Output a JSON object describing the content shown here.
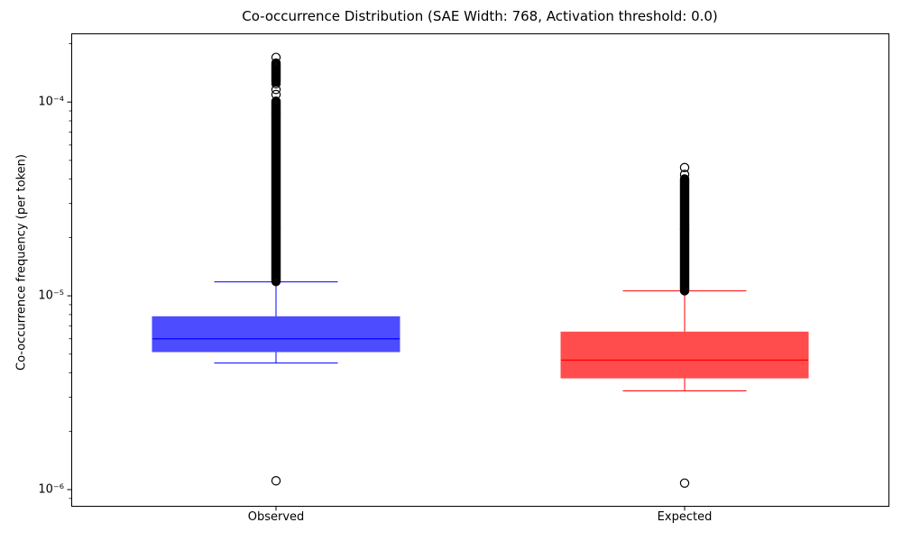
{
  "chart_data": {
    "type": "boxplot",
    "title": "Co-occurrence Distribution (SAE Width: 768, Activation threshold: 0.0)",
    "ylabel": "Co-occurrence frequency (per token)",
    "xlabel": "",
    "yscale": "log",
    "ylim": [
      8.2e-07,
      0.000225
    ],
    "grid": false,
    "yticks": [
      {
        "value": 0.0001,
        "label": "10⁻⁴"
      },
      {
        "value": 1e-05,
        "label": "10⁻⁵"
      },
      {
        "value": 1e-06,
        "label": "10⁻⁶"
      }
    ],
    "categories": [
      "Observed",
      "Expected"
    ],
    "colors": {
      "figure_background": "#ffffff",
      "axes_background": "#ffffff",
      "spine": "#000000",
      "outlier_stroke": "#000000",
      "observed_line": "#0000ff",
      "observed_fill": "#4d4dff",
      "expected_line": "#ff0000",
      "expected_fill": "#ff4d4d"
    },
    "series": [
      {
        "name": "Observed",
        "line_color": "#0000ff",
        "fill_color": "#4d4dff",
        "stats": {
          "whisker_low": 4.5e-06,
          "q1": 5.15e-06,
          "median": 6e-06,
          "q3": 7.8e-06,
          "whisker_high": 1.18e-05
        },
        "outliers_high": [
          0.00017,
          0.0001243,
          0.0001161,
          0.0001093
        ],
        "outliers_high_dense": [
          [
            0.000126,
            0.000159
          ],
          [
            1.18e-05,
            0.000101
          ]
        ],
        "outliers_low": [
          1.11e-06
        ]
      },
      {
        "name": "Expected",
        "line_color": "#ff0000",
        "fill_color": "#ff4d4d",
        "stats": {
          "whisker_low": 3.23e-06,
          "q1": 3.77e-06,
          "median": 4.66e-06,
          "q3": 6.5e-06,
          "whisker_high": 1.06e-05
        },
        "outliers_high": [
          4.59e-05,
          4.23e-05
        ],
        "outliers_high_dense": [
          [
            1.06e-05,
            4.01e-05
          ]
        ],
        "outliers_low": [
          1.08e-06
        ]
      }
    ]
  }
}
